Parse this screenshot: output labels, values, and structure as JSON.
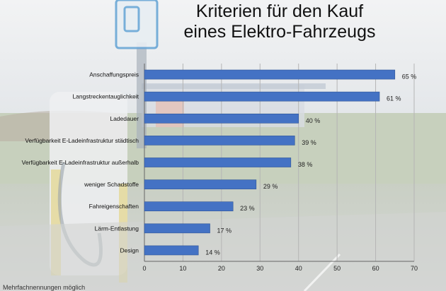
{
  "title_line1": "Kriterien für den Kauf",
  "title_line2": "eines Elektro-Fahrzeugs",
  "footnote": "Mehrfachnennungen möglich",
  "colors": {
    "bar": "#4472c4",
    "bar_stroke": "#2f5597",
    "grid": "#b5b5b5"
  },
  "chart_data": {
    "type": "bar",
    "orientation": "horizontal",
    "title": "Kriterien für den Kauf eines Elektro-Fahrzeugs",
    "categories": [
      "Anschaffungspreis",
      "Langstreckentauglichkeit",
      "Ladedauer",
      "Verfügbarkeit E-Ladeinfrastruktur städtisch",
      "Verfügbarkeit E-Ladeinfrastruktur außerhalb",
      "weniger Schadstoffe",
      "Fahreigenschaften",
      "Lärm-Entlastung",
      "Design"
    ],
    "values": [
      65,
      61,
      40,
      39,
      38,
      29,
      23,
      17,
      14
    ],
    "data_labels": [
      "65 %",
      "61 %",
      "40 %",
      "39 %",
      "38 %",
      "29 %",
      "23 %",
      "17 %",
      "14 %"
    ],
    "xlim": [
      0,
      70
    ],
    "xticks": [
      0,
      10,
      20,
      30,
      40,
      50,
      60,
      70
    ],
    "grid": true,
    "legend": false
  }
}
